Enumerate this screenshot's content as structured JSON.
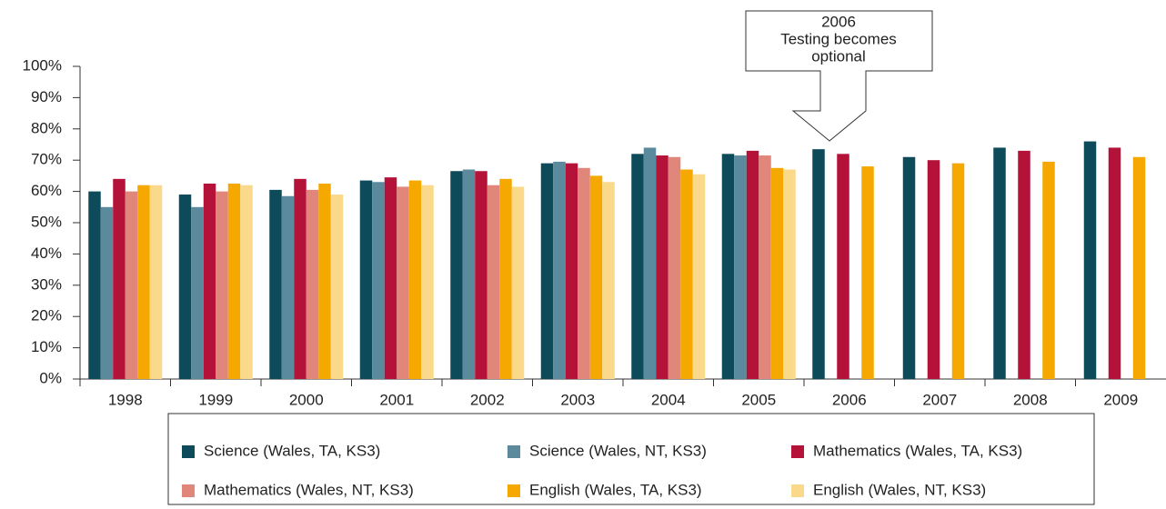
{
  "chart_data": {
    "type": "bar",
    "annotation": [
      "2006",
      "Testing becomes",
      "optional"
    ],
    "categories": [
      "1998",
      "1999",
      "2000",
      "2001",
      "2002",
      "2003",
      "2004",
      "2005",
      "2006",
      "2007",
      "2008",
      "2009"
    ],
    "series": [
      {
        "name": "Science (Wales, TA, KS3)",
        "color": "#0d4a5a",
        "values": [
          60,
          59,
          60.5,
          63.5,
          66.5,
          69,
          72,
          72,
          73.5,
          71,
          74,
          76
        ]
      },
      {
        "name": "Science (Wales, NT, KS3)",
        "color": "#5a8a9c",
        "values": [
          55,
          55,
          58.5,
          63,
          67,
          69.5,
          74,
          71.5,
          null,
          null,
          null,
          null
        ]
      },
      {
        "name": "Mathematics (Wales, TA, KS3)",
        "color": "#b5123a",
        "values": [
          64,
          62.5,
          64,
          64.5,
          66.5,
          69,
          71.5,
          73,
          72,
          70,
          73,
          74
        ]
      },
      {
        "name": "Mathematics (Wales, NT, KS3)",
        "color": "#e0867a",
        "values": [
          60,
          60,
          60.5,
          61.5,
          62,
          67.5,
          71,
          71.5,
          null,
          null,
          null,
          null
        ]
      },
      {
        "name": "English (Wales, TA, KS3)",
        "color": "#f5a800",
        "values": [
          62,
          62.5,
          62.5,
          63.5,
          64,
          65,
          67,
          67.5,
          68,
          69,
          69.5,
          71
        ]
      },
      {
        "name": "English (Wales, NT, KS3)",
        "color": "#fbd98a",
        "values": [
          62,
          62,
          59,
          62,
          61.5,
          63,
          65.5,
          67,
          null,
          null,
          null,
          null
        ]
      }
    ],
    "ylim": [
      0,
      100
    ],
    "yticks": [
      {
        "value": 0,
        "label": "0%"
      },
      {
        "value": 10,
        "label": "10%"
      },
      {
        "value": 20,
        "label": "20%"
      },
      {
        "value": 30,
        "label": "30%"
      },
      {
        "value": 40,
        "label": "40%"
      },
      {
        "value": 50,
        "label": "50%"
      },
      {
        "value": 60,
        "label": "60%"
      },
      {
        "value": 70,
        "label": "70%"
      },
      {
        "value": 80,
        "label": "80%"
      },
      {
        "value": 90,
        "label": "90%"
      },
      {
        "value": 100,
        "label": "100%"
      }
    ],
    "grid": false
  }
}
